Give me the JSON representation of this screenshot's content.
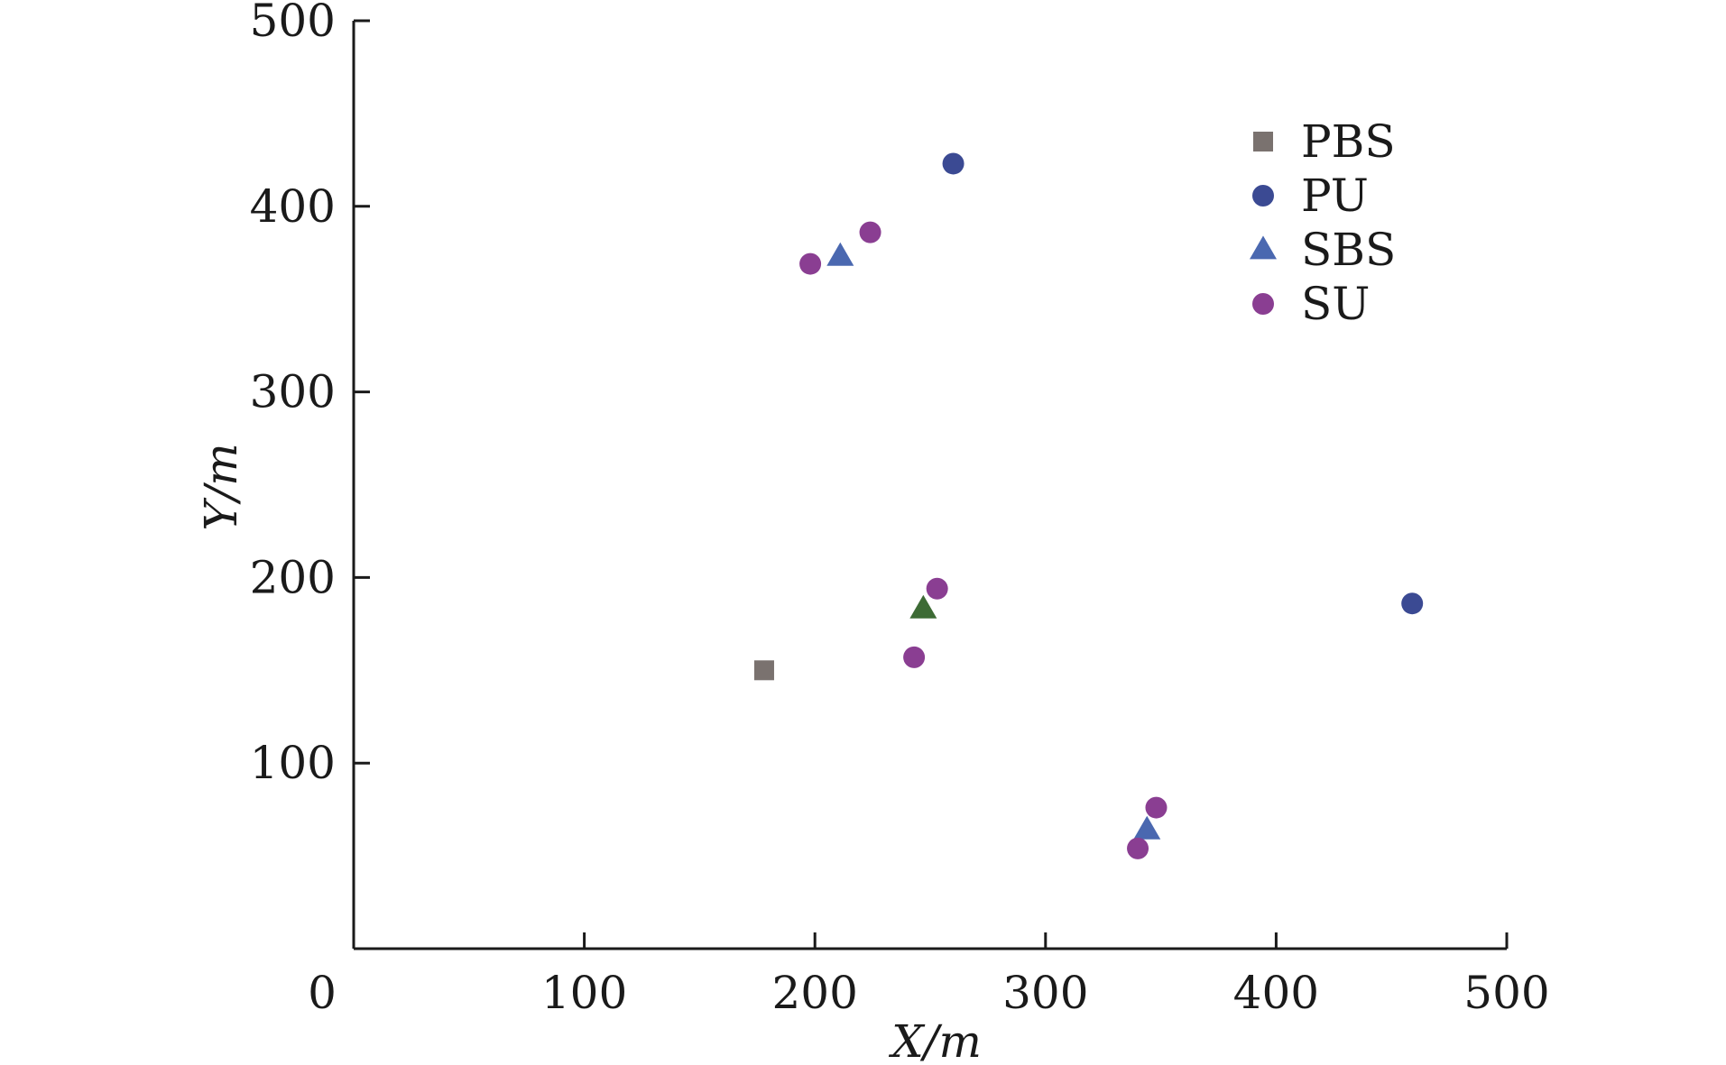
{
  "chart_data": {
    "type": "scatter",
    "xlabel": "X/m",
    "ylabel": "Y/m",
    "xlim": [
      0,
      500
    ],
    "ylim": [
      0,
      500
    ],
    "x_ticks": [
      "0",
      "100",
      "200",
      "300",
      "400",
      "500"
    ],
    "y_ticks": [
      "100",
      "200",
      "300",
      "400",
      "500"
    ],
    "grid": false,
    "legend_position": "top-right",
    "series": [
      {
        "name": "PBS",
        "marker": "square",
        "color": "#7a726f",
        "points": [
          [
            178,
            150
          ]
        ]
      },
      {
        "name": "PU",
        "marker": "circle",
        "color": "#3b4a93",
        "points": [
          [
            260,
            423
          ],
          [
            459,
            186
          ]
        ]
      },
      {
        "name": "SBS",
        "marker": "triangle",
        "color": "#4a68b0",
        "points": [
          [
            211,
            373
          ],
          [
            247,
            183
          ],
          [
            344,
            64
          ]
        ]
      },
      {
        "name": "SU",
        "marker": "circle",
        "color": "#8a3e92",
        "points": [
          [
            198,
            369
          ],
          [
            224,
            386
          ],
          [
            253,
            194
          ],
          [
            243,
            157
          ],
          [
            348,
            76
          ],
          [
            340,
            54
          ]
        ]
      }
    ],
    "extra_colors": {
      "SBS_center_point": "#3d6b35"
    }
  }
}
